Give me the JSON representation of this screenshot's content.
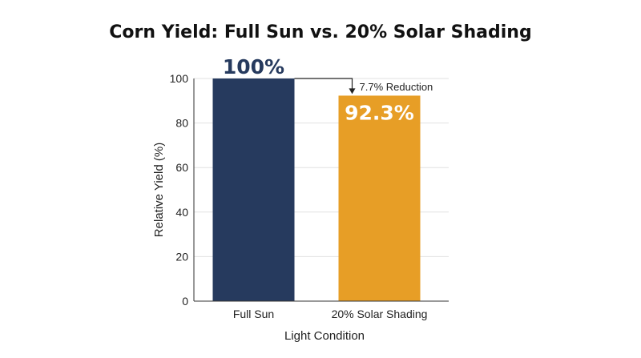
{
  "chart_data": {
    "type": "bar",
    "title": "Corn Yield: Full Sun vs. 20% Solar Shading",
    "xlabel": "Light Condition",
    "ylabel": "Relative Yield (%)",
    "categories": [
      "Full Sun",
      "20% Solar Shading"
    ],
    "values": [
      100,
      92.3
    ],
    "data_labels": [
      "100%",
      "92.3%"
    ],
    "colors": [
      "#263a5e",
      "#e79e26"
    ],
    "data_label_colors": [
      "#263a5e",
      "#ffffff"
    ],
    "ylim": [
      0,
      100
    ],
    "yticks": [
      0,
      20,
      40,
      60,
      80,
      100
    ],
    "grid": true,
    "legend": "none",
    "annotation": {
      "text": "7.7% Reduction",
      "from_value": 100,
      "to_value": 92.3
    }
  }
}
